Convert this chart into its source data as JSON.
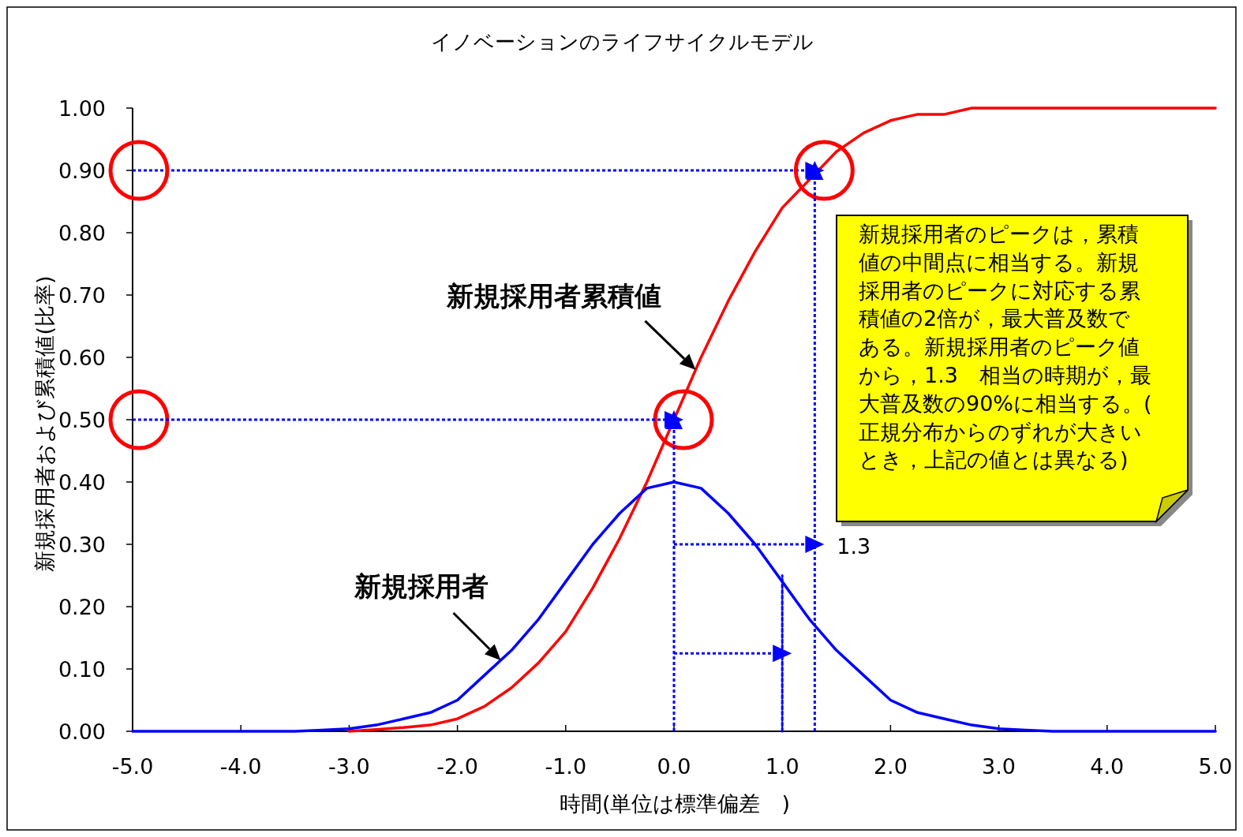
{
  "chart_data": {
    "type": "line",
    "title": "イノベーションのライフサイクルモデル",
    "xlabel": "時間(単位は標準偏差　)",
    "ylabel": "新規採用者および累積値(比率)",
    "xlim": [
      -5,
      5
    ],
    "ylim": [
      0,
      1
    ],
    "xticks": [
      {
        "value": -5,
        "label": "-5.0"
      },
      {
        "value": -4,
        "label": "-4.0"
      },
      {
        "value": -3,
        "label": "-3.0"
      },
      {
        "value": -2,
        "label": "-2.0"
      },
      {
        "value": -1,
        "label": "-1.0"
      },
      {
        "value": 0,
        "label": "0.0"
      },
      {
        "value": 1,
        "label": "1.0"
      },
      {
        "value": 2,
        "label": "2.0"
      },
      {
        "value": 3,
        "label": "3.0"
      },
      {
        "value": 4,
        "label": "4.0"
      },
      {
        "value": 5,
        "label": "5.0"
      }
    ],
    "yticks": [
      {
        "value": 0,
        "label": "0.00"
      },
      {
        "value": 0.1,
        "label": "0.10"
      },
      {
        "value": 0.2,
        "label": "0.20"
      },
      {
        "value": 0.3,
        "label": "0.30"
      },
      {
        "value": 0.4,
        "label": "0.40"
      },
      {
        "value": 0.5,
        "label": "0.50"
      },
      {
        "value": 0.6,
        "label": "0.60"
      },
      {
        "value": 0.7,
        "label": "0.70"
      },
      {
        "value": 0.8,
        "label": "0.80"
      },
      {
        "value": 0.9,
        "label": "0.90"
      },
      {
        "value": 1,
        "label": "1.00"
      }
    ],
    "grid": false,
    "legend": false,
    "series": [
      {
        "name": "新規採用者",
        "color": "#0000ff",
        "line_style": "solid",
        "marker": "none",
        "x": [
          -5,
          -4.5,
          -4,
          -3.5,
          -3.25,
          -3,
          -2.75,
          -2.5,
          -2.25,
          -2,
          -1.75,
          -1.5,
          -1.25,
          -1,
          -0.75,
          -0.5,
          -0.25,
          0,
          0.25,
          0.5,
          0.75,
          1,
          1.25,
          1.5,
          1.75,
          2,
          2.25,
          2.5,
          2.75,
          3,
          3.25,
          3.5,
          4,
          4.5,
          5
        ],
        "values": [
          0,
          0,
          0,
          0,
          0.002,
          0.004,
          0.01,
          0.02,
          0.03,
          0.05,
          0.09,
          0.13,
          0.18,
          0.24,
          0.3,
          0.35,
          0.39,
          0.4,
          0.39,
          0.35,
          0.3,
          0.24,
          0.18,
          0.13,
          0.09,
          0.05,
          0.03,
          0.02,
          0.01,
          0.004,
          0.002,
          0,
          0,
          0,
          0
        ]
      },
      {
        "name": "新規採用者累積値",
        "color": "#ff0000",
        "line_style": "solid",
        "marker": "none",
        "x": [
          -3,
          -2.75,
          -2.5,
          -2.25,
          -2,
          -1.75,
          -1.5,
          -1.25,
          -1,
          -0.75,
          -0.5,
          -0.25,
          0.25,
          0.5,
          0.75,
          1,
          1.5,
          1.75,
          2,
          2.25,
          2.5,
          2.75,
          3,
          3.5,
          4,
          4.5,
          5
        ],
        "values": [
          0,
          0.003,
          0.006,
          0.01,
          0.02,
          0.04,
          0.07,
          0.11,
          0.16,
          0.23,
          0.31,
          0.4,
          0.6,
          0.69,
          0.77,
          0.84,
          0.93,
          0.96,
          0.98,
          0.99,
          0.99,
          1,
          1,
          1,
          1,
          1,
          1
        ]
      },
      {
        "color": "#0000ff",
        "line_style": "dotted",
        "marker": "triangle",
        "x": [
          -5,
          1.3
        ],
        "values": [
          0.9,
          0.9
        ]
      },
      {
        "color": "#0000ff",
        "line_style": "dotted",
        "marker": "triangle",
        "x": [
          -5,
          0
        ],
        "values": [
          0.5,
          0.5
        ]
      },
      {
        "color": "#0000ff",
        "line_style": "dotted",
        "marker": "triangle",
        "x": [
          0,
          0
        ],
        "values": [
          0,
          0.5
        ]
      },
      {
        "color": "#0000ff",
        "line_style": "dotted",
        "marker": "triangle",
        "x": [
          1.3,
          1.3
        ],
        "values": [
          0,
          0.9
        ]
      },
      {
        "color": "#0000ff",
        "line_style": "dotted",
        "marker": "triangle",
        "x": [
          0,
          1.3
        ],
        "values": [
          0.3,
          0.3
        ]
      },
      {
        "color": "#0000ff",
        "line_style": "dotted",
        "marker": "triangle",
        "x": [
          0,
          1
        ],
        "values": [
          0.125,
          0.125
        ]
      },
      {
        "color": "#0000ff",
        "line_style": "dotted",
        "marker": "none",
        "x": [
          1,
          1
        ],
        "values": [
          0,
          0.25
        ]
      }
    ],
    "annotations": [
      "新規採用者のピークは，累積値の中間点に相当する。新規採用者のピークに対応する累積値の2倍が，最大普及数である。新規採用者のピーク値から，1.3　相当の時期が，最大普及数の90%に相当する。(正規分布からのずれが大きいとき，上記の値とは異なる)",
      {
        "text": "1.3",
        "x": 1.3,
        "y": 0.3
      }
    ]
  }
}
